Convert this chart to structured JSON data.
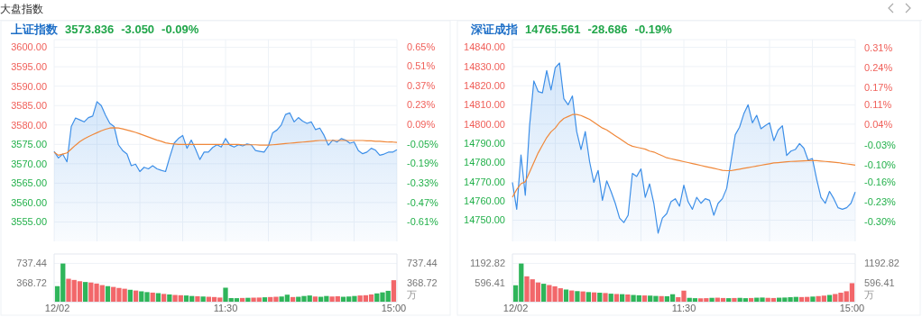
{
  "chart_data": [
    {
      "type": "other",
      "title": "大盘指数"
    },
    {
      "type": "line",
      "title": "上证指数",
      "annotations": [
        "3573.836",
        "-3.050",
        "-0.09%"
      ],
      "categories": [
        null,
        null,
        null,
        null,
        null,
        null,
        null,
        null,
        null,
        null,
        null,
        null,
        null,
        null,
        null,
        null,
        null,
        null,
        null,
        null,
        null,
        null,
        null,
        null,
        null,
        null,
        null,
        null,
        null,
        null,
        null,
        null,
        null,
        null,
        null,
        null,
        null,
        null,
        null,
        null,
        null,
        null,
        null,
        null,
        null,
        null,
        null,
        null,
        null,
        null,
        null,
        null,
        null,
        null,
        null,
        null,
        null,
        null,
        null,
        null,
        null,
        null,
        null,
        null,
        null,
        null,
        null,
        null,
        null,
        null,
        null,
        null,
        null,
        null,
        null,
        null,
        null,
        null,
        null,
        null,
        null
      ],
      "series": [
        {
          "type": "area",
          "color": "#3d8fe8",
          "values": [
            3573.2,
            3571.5,
            3572.5,
            3570.5,
            3579.6,
            3581.8,
            3581.3,
            3580.8,
            3581.9,
            3582.3,
            3586.0,
            3585.0,
            3582.5,
            3580.4,
            3579.6,
            3574.9,
            3573.4,
            3572.5,
            3569.5,
            3569.9,
            3568.0,
            3569.1,
            3568.7,
            3569.5,
            3568.7,
            3568.3,
            3568.0,
            3571.8,
            3575.3,
            3576.5,
            3577.3,
            3574.0,
            3576.1,
            3573.8,
            3571.1,
            3573.0,
            3573.0,
            3574.2,
            3574.9,
            3574.3,
            3576.5,
            3574.8,
            3574.3,
            3574.9,
            3574.6,
            3575.1,
            3574.9,
            3573.4,
            3573.2,
            3573.0,
            3574.6,
            3578.0,
            3578.7,
            3580.0,
            3582.7,
            3583.1,
            3580.8,
            3581.9,
            3581.0,
            3580.4,
            3580.8,
            3578.8,
            3579.2,
            3577.3,
            3574.8,
            3576.1,
            3575.6,
            3576.5,
            3576.1,
            3575.3,
            3575.6,
            3573.4,
            3572.6,
            3573.0,
            3574.0,
            3573.5,
            3572.2,
            3572.5,
            3573.0,
            3573.0,
            3573.6
          ]
        },
        {
          "type": "line",
          "color": "#f0883a",
          "values": [
            3573.0,
            3572.2,
            3572.5,
            3572.8,
            3573.8,
            3574.8,
            3575.7,
            3576.4,
            3577.0,
            3577.5,
            3578.0,
            3578.5,
            3578.9,
            3579.2,
            3579.3,
            3579.2,
            3579.0,
            3578.7,
            3578.4,
            3578.1,
            3577.7,
            3577.3,
            3576.9,
            3576.5,
            3576.1,
            3575.8,
            3575.4,
            3575.2,
            3575.1,
            3575.0,
            3575.0,
            3575.0,
            3575.0,
            3575.0,
            3575.0,
            3575.0,
            3575.0,
            3575.0,
            3575.0,
            3575.0,
            3575.0,
            3575.0,
            3575.0,
            3575.0,
            3574.9,
            3574.9,
            3574.9,
            3574.9,
            3574.8,
            3574.8,
            3574.8,
            3574.9,
            3575.0,
            3575.1,
            3575.2,
            3575.3,
            3575.4,
            3575.5,
            3575.6,
            3575.7,
            3575.8,
            3575.9,
            3576.0,
            3576.0,
            3576.0,
            3576.0,
            3576.0,
            3576.0,
            3576.0,
            3576.0,
            3576.0,
            3576.0,
            3576.0,
            3575.9,
            3575.9,
            3575.8,
            3575.8,
            3575.7,
            3575.6,
            3575.6,
            3575.5
          ]
        }
      ],
      "ylim": [
        3550,
        3602
      ],
      "yticks": [
        {
          "value": 3600,
          "label": "3600.00"
        },
        {
          "value": 3595,
          "label": "3595.00"
        },
        {
          "value": 3590,
          "label": "3590.00"
        },
        {
          "value": 3585,
          "label": "3585.00"
        },
        {
          "value": 3580,
          "label": "3580.00"
        },
        {
          "value": 3575,
          "label": "3575.00"
        },
        {
          "value": 3570,
          "label": "3570.00"
        },
        {
          "value": 3565,
          "label": "3565.00"
        },
        {
          "value": 3560,
          "label": "3560.00"
        },
        {
          "value": 3555,
          "label": "3555.00"
        }
      ],
      "y2lim": [
        -0.75,
        0.7
      ],
      "y2ticks": [
        {
          "value": 0.65,
          "label": "0.65%"
        },
        {
          "value": 0.51,
          "label": "0.51%"
        },
        {
          "value": 0.37,
          "label": "0.37%"
        },
        {
          "value": 0.23,
          "label": "0.23%"
        },
        {
          "value": 0.09,
          "label": "0.09%"
        },
        {
          "value": -0.05,
          "label": "-0.05%"
        },
        {
          "value": -0.19,
          "label": "-0.19%"
        },
        {
          "value": -0.33,
          "label": "-0.33%"
        },
        {
          "value": -0.47,
          "label": "-0.47%"
        },
        {
          "value": -0.61,
          "label": "-0.61%"
        }
      ],
      "grid": true
    },
    {
      "type": "bar",
      "categories": [
        "12/02",
        null,
        null,
        null,
        null,
        null,
        null,
        null,
        null,
        null,
        null,
        null,
        null,
        null,
        null,
        null,
        null,
        null,
        null,
        null,
        null,
        null,
        null,
        null,
        null,
        null,
        null,
        null,
        null,
        null,
        "11:30",
        null,
        null,
        null,
        null,
        null,
        null,
        null,
        null,
        null,
        null,
        null,
        null,
        null,
        null,
        null,
        null,
        null,
        null,
        null,
        null,
        null,
        null,
        null,
        null,
        null,
        null,
        null,
        null,
        null,
        "15:00"
      ],
      "values": [
        300,
        737,
        443,
        420,
        395,
        380,
        370,
        350,
        320,
        300,
        285,
        265,
        250,
        230,
        215,
        200,
        185,
        175,
        165,
        150,
        140,
        130,
        125,
        120,
        110,
        105,
        100,
        95,
        90,
        80,
        270,
        70,
        68,
        72,
        75,
        78,
        80,
        85,
        90,
        95,
        100,
        135,
        90,
        95,
        110,
        120,
        100,
        95,
        110,
        100,
        105,
        95,
        100,
        110,
        120,
        125,
        140,
        160,
        180,
        210,
        415
      ],
      "colors": [
        "#2fb55a",
        "#2fb55a",
        "#f2676a",
        "#f2676a",
        "#f2676a",
        "#2fb55a",
        "#f2676a",
        "#f2676a",
        "#f2676a",
        "#2fb55a",
        "#f2676a",
        "#f2676a",
        "#f2676a",
        "#2fb55a",
        "#f2676a",
        "#2fb55a",
        "#2fb55a",
        "#f2676a",
        "#2fb55a",
        "#f2676a",
        "#2fb55a",
        "#f2676a",
        "#f2676a",
        "#2fb55a",
        "#2fb55a",
        "#f2676a",
        "#2fb55a",
        "#f2676a",
        "#f2676a",
        "#f2676a",
        "#2fb55a",
        "#2fb55a",
        "#2fb55a",
        "#f2676a",
        "#2fb55a",
        "#f2676a",
        "#f2676a",
        "#2fb55a",
        "#f2676a",
        "#f2676a",
        "#2fb55a",
        "#2fb55a",
        "#f2676a",
        "#2fb55a",
        "#2fb55a",
        "#2fb55a",
        "#f2676a",
        "#2fb55a",
        "#2fb55a",
        "#f2676a",
        "#f2676a",
        "#2fb55a",
        "#2fb55a",
        "#2fb55a",
        "#f2676a",
        "#f2676a",
        "#f2676a",
        "#2fb55a",
        "#2fb55a",
        "#2fb55a",
        "#f2676a"
      ],
      "ylim": [
        0,
        921.8
      ],
      "yticks": [
        368.72,
        737.44
      ],
      "y2lim": [
        0,
        921.8
      ],
      "y2ticks": [
        368.72,
        737.44
      ],
      "y2label": "万",
      "grid": "y"
    },
    {
      "type": "line",
      "title": "深证成指",
      "annotations": [
        "14765.561",
        "-28.686",
        "-0.19%"
      ],
      "categories": [
        null,
        null,
        null,
        null,
        null,
        null,
        null,
        null,
        null,
        null,
        null,
        null,
        null,
        null,
        null,
        null,
        null,
        null,
        null,
        null,
        null,
        null,
        null,
        null,
        null,
        null,
        null,
        null,
        null,
        null,
        null,
        null,
        null,
        null,
        null,
        null,
        null,
        null,
        null,
        null,
        null,
        null,
        null,
        null,
        null,
        null,
        null,
        null,
        null,
        null,
        null,
        null,
        null,
        null,
        null,
        null,
        null,
        null,
        null,
        null,
        null,
        null,
        null,
        null,
        null,
        null,
        null,
        null,
        null,
        null,
        null,
        null,
        null,
        null,
        null,
        null,
        null,
        null,
        null,
        null,
        null
      ],
      "series": [
        {
          "type": "area",
          "color": "#3d8fe8",
          "values": [
            14769.7,
            14755.7,
            14784,
            14763,
            14799.2,
            14822.5,
            14817.0,
            14816.3,
            14827.9,
            14817.8,
            14829.4,
            14831.8,
            14813.2,
            14810.1,
            14814.7,
            14796.1,
            14786.8,
            14796.1,
            14780.6,
            14769.7,
            14775.9,
            14760.4,
            14770.5,
            14765.0,
            14758.8,
            14751.1,
            14748.8,
            14752.6,
            14774.4,
            14772.8,
            14776.7,
            14761.9,
            14768.9,
            14758.8,
            14743.3,
            14751.1,
            14753.4,
            14759.6,
            14761.2,
            14757.3,
            14768.2,
            14759.6,
            14755.7,
            14761.9,
            14758.8,
            14761.2,
            14760.4,
            14752.6,
            14758.8,
            14761.2,
            14766.6,
            14780.6,
            14794.5,
            14798.4,
            14805.4,
            14810.1,
            14800.7,
            14804.6,
            14797.6,
            14799.2,
            14800.7,
            14791.4,
            14796.9,
            14799.2,
            14783.7,
            14786.0,
            14786.8,
            14789.9,
            14787.5,
            14781.3,
            14782.1,
            14771.3,
            14761.9,
            14758.8,
            14765.0,
            14761.2,
            14756.5,
            14755.7,
            14756.5,
            14758.8,
            14764.7
          ]
        },
        {
          "type": "line",
          "color": "#f0883a",
          "values": [
            14762,
            14766,
            14769,
            14770,
            14775,
            14780,
            14785,
            14789,
            14793,
            14796,
            14798,
            14801,
            14803,
            14804,
            14805,
            14805,
            14804.5,
            14803.5,
            14802.5,
            14801,
            14799.5,
            14798,
            14797,
            14795.5,
            14794,
            14792.5,
            14791,
            14789.5,
            14788.5,
            14788,
            14787.5,
            14787,
            14786,
            14785.5,
            14784.5,
            14783.5,
            14782.5,
            14782,
            14781.5,
            14781,
            14780.5,
            14780,
            14779.5,
            14779,
            14778.5,
            14778,
            14777.5,
            14777,
            14776.5,
            14776,
            14775.8,
            14775.8,
            14776.2,
            14776.6,
            14777,
            14777.4,
            14777.8,
            14778.2,
            14778.6,
            14779,
            14779.4,
            14779.8,
            14780,
            14780.2,
            14780.4,
            14780.6,
            14780.7,
            14780.8,
            14780.9,
            14781,
            14781,
            14781,
            14780.8,
            14780.6,
            14780.4,
            14780.2,
            14780,
            14779.6,
            14779.3,
            14779,
            14778.7
          ]
        }
      ],
      "ylim": [
        14739,
        14844
      ],
      "yticks": [
        {
          "value": 14840,
          "label": "14840.00"
        },
        {
          "value": 14830,
          "label": "14830.00"
        },
        {
          "value": 14820,
          "label": "14820.00"
        },
        {
          "value": 14810,
          "label": "14810.00"
        },
        {
          "value": 14800,
          "label": "14800.00"
        },
        {
          "value": 14790,
          "label": "14790.00"
        },
        {
          "value": 14780,
          "label": "14780.00"
        },
        {
          "value": 14770,
          "label": "14770.00"
        },
        {
          "value": 14760,
          "label": "14760.00"
        },
        {
          "value": 14750,
          "label": "14750.00"
        }
      ],
      "y2lim": [
        -0.37,
        0.34
      ],
      "y2ticks": [
        {
          "value": 0.31,
          "label": "0.31%"
        },
        {
          "value": 0.24,
          "label": "0.24%"
        },
        {
          "value": 0.17,
          "label": "0.17%"
        },
        {
          "value": 0.11,
          "label": "0.11%"
        },
        {
          "value": 0.04,
          "label": "0.04%"
        },
        {
          "value": -0.03,
          "label": "-0.03%"
        },
        {
          "value": -0.1,
          "label": "-0.10%"
        },
        {
          "value": -0.16,
          "label": "-0.16%"
        },
        {
          "value": -0.23,
          "label": "-0.23%"
        },
        {
          "value": -0.3,
          "label": "-0.30%"
        }
      ],
      "grid": true
    },
    {
      "type": "bar",
      "categories": [
        "12/02",
        null,
        null,
        null,
        null,
        null,
        null,
        null,
        null,
        null,
        null,
        null,
        null,
        null,
        null,
        null,
        null,
        null,
        null,
        null,
        null,
        null,
        null,
        null,
        null,
        null,
        null,
        null,
        null,
        null,
        "11:30",
        null,
        null,
        null,
        null,
        null,
        null,
        null,
        null,
        null,
        null,
        null,
        null,
        null,
        null,
        null,
        null,
        null,
        null,
        null,
        null,
        null,
        null,
        null,
        null,
        null,
        null,
        null,
        null,
        null,
        "15:00"
      ],
      "values": [
        513,
        1192,
        792,
        700,
        600,
        560,
        520,
        480,
        420,
        380,
        350,
        330,
        320,
        300,
        290,
        280,
        270,
        250,
        240,
        235,
        225,
        210,
        200,
        195,
        190,
        180,
        175,
        170,
        233,
        140,
        345,
        120,
        110,
        105,
        110,
        120,
        125,
        115,
        110,
        115,
        120,
        110,
        115,
        125,
        130,
        120,
        115,
        125,
        130,
        140,
        150,
        145,
        150,
        160,
        175,
        190,
        210,
        240,
        280,
        326,
        578
      ],
      "colors": [
        "#2fb55a",
        "#2fb55a",
        "#f2676a",
        "#f2676a",
        "#f2676a",
        "#2fb55a",
        "#f2676a",
        "#f2676a",
        "#f2676a",
        "#2fb55a",
        "#f2676a",
        "#2fb55a",
        "#f2676a",
        "#2fb55a",
        "#f2676a",
        "#2fb55a",
        "#f2676a",
        "#2fb55a",
        "#f2676a",
        "#2fb55a",
        "#f2676a",
        "#2fb55a",
        "#2fb55a",
        "#f2676a",
        "#2fb55a",
        "#2fb55a",
        "#f2676a",
        "#2fb55a",
        "#2fb55a",
        "#f2676a",
        "#f2676a",
        "#2fb55a",
        "#2fb55a",
        "#f2676a",
        "#f2676a",
        "#2fb55a",
        "#f2676a",
        "#f2676a",
        "#2fb55a",
        "#f2676a",
        "#2fb55a",
        "#2fb55a",
        "#f2676a",
        "#2fb55a",
        "#2fb55a",
        "#f2676a",
        "#f2676a",
        "#2fb55a",
        "#2fb55a",
        "#2fb55a",
        "#2fb55a",
        "#f2676a",
        "#f2676a",
        "#2fb55a",
        "#f2676a",
        "#f2676a",
        "#2fb55a",
        "#f2676a",
        "#f2676a",
        "#f2676a",
        "#f2676a"
      ],
      "ylim": [
        0,
        1491
      ],
      "yticks": [
        596.41,
        1192.82
      ],
      "y2lim": [
        0,
        1491
      ],
      "y2ticks": [
        596.41,
        1192.82
      ],
      "y2label": "万",
      "grid": "y"
    }
  ]
}
